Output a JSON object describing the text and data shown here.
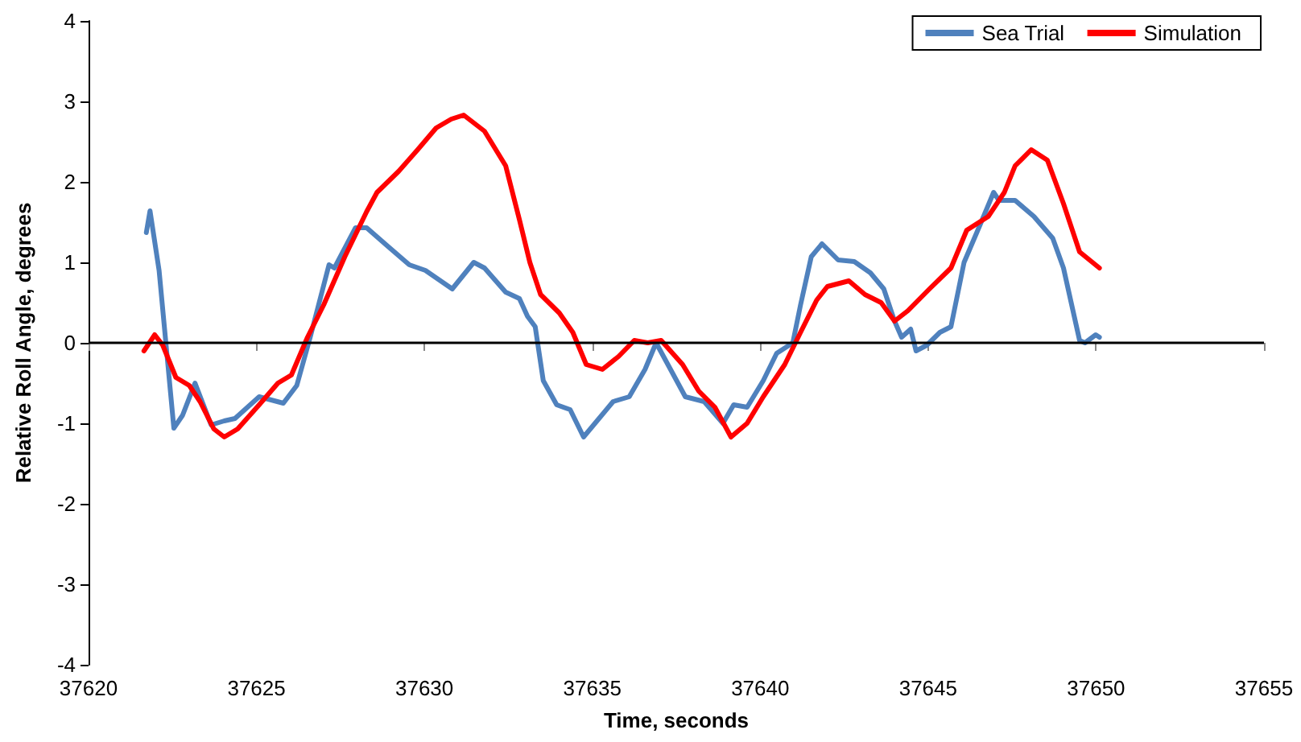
{
  "chart_data": {
    "type": "line",
    "xlabel": "Time, seconds",
    "ylabel": "Relative Roll Angle, degrees",
    "xlim": [
      37620,
      37655
    ],
    "xticks": [
      37620,
      37625,
      37630,
      37635,
      37640,
      37645,
      37650,
      37655
    ],
    "ylim": [
      -4,
      4
    ],
    "yticks": [
      -4,
      -3,
      -2,
      -1,
      0,
      1,
      2,
      3,
      4
    ],
    "grid": false,
    "ref_lines": [
      {
        "axis": "y",
        "value": 0,
        "color": "#000000",
        "line_style": "solid"
      }
    ],
    "legend": "top right",
    "marker": "none",
    "line_style": "solid",
    "series": [
      {
        "name": "Sea Trial",
        "color": "#4f81bd",
        "x": [
          37621.72,
          37621.83,
          37622.1,
          37622.54,
          37622.8,
          37623.17,
          37623.65,
          37624.04,
          37624.36,
          37625.08,
          37625.8,
          37626.2,
          37626.6,
          37627.16,
          37627.32,
          37627.95,
          37628.28,
          37628.91,
          37629.55,
          37630.03,
          37630.83,
          37631.47,
          37631.79,
          37632.42,
          37632.83,
          37633.07,
          37633.3,
          37633.54,
          37633.94,
          37634.34,
          37634.74,
          37635.14,
          37635.62,
          37636.1,
          37636.57,
          37636.9,
          37637.29,
          37637.77,
          37638.33,
          37638.89,
          37639.21,
          37639.61,
          37640.09,
          37640.49,
          37640.97,
          37641.2,
          37641.52,
          37641.84,
          37642.32,
          37642.8,
          37643.28,
          37643.68,
          37644.0,
          37644.21,
          37644.48,
          37644.64,
          37644.96,
          37645.35,
          37645.68,
          37646.07,
          37646.55,
          37646.95,
          37647.11,
          37647.59,
          37648.15,
          37648.71,
          37649.03,
          37649.51,
          37649.67,
          37649.99,
          37650.1
        ],
        "values": [
          1.37,
          1.64,
          0.9,
          -1.06,
          -0.9,
          -0.5,
          -1.02,
          -0.97,
          -0.94,
          -0.67,
          -0.75,
          -0.53,
          0.07,
          0.97,
          0.93,
          1.43,
          1.43,
          1.2,
          0.97,
          0.9,
          0.67,
          1.0,
          0.93,
          0.63,
          0.55,
          0.33,
          0.2,
          -0.47,
          -0.77,
          -0.83,
          -1.17,
          -0.97,
          -0.73,
          -0.67,
          -0.33,
          0.0,
          -0.3,
          -0.67,
          -0.73,
          -1.0,
          -0.77,
          -0.8,
          -0.47,
          -0.13,
          0.0,
          0.47,
          1.07,
          1.23,
          1.03,
          1.01,
          0.87,
          0.67,
          0.27,
          0.07,
          0.17,
          -0.1,
          -0.03,
          0.13,
          0.2,
          1.0,
          1.47,
          1.87,
          1.77,
          1.77,
          1.57,
          1.3,
          0.93,
          0.03,
          0.0,
          0.1,
          0.07
        ]
      },
      {
        "name": "Simulation",
        "color": "#ff0000",
        "x": [
          37621.65,
          37621.97,
          37622.21,
          37622.6,
          37623.0,
          37623.32,
          37623.73,
          37624.04,
          37624.44,
          37625.08,
          37625.64,
          37626.04,
          37626.52,
          37627.0,
          37627.63,
          37628.28,
          37628.59,
          37629.23,
          37629.8,
          37630.35,
          37630.8,
          37631.17,
          37631.79,
          37632.42,
          37632.83,
          37633.14,
          37633.46,
          37634.02,
          37634.42,
          37634.82,
          37635.3,
          37635.78,
          37636.25,
          37636.65,
          37637.05,
          37637.69,
          37638.17,
          37638.65,
          37639.13,
          37639.61,
          37640.09,
          37640.73,
          37641.2,
          37641.68,
          37642.0,
          37642.64,
          37643.12,
          37643.6,
          37644.0,
          37644.4,
          37645.04,
          37645.68,
          37646.15,
          37646.79,
          37647.27,
          37647.59,
          37648.07,
          37648.55,
          37649.03,
          37649.51,
          37650.1
        ],
        "values": [
          -0.1,
          0.1,
          -0.03,
          -0.43,
          -0.53,
          -0.73,
          -1.07,
          -1.17,
          -1.07,
          -0.77,
          -0.5,
          -0.4,
          0.07,
          0.47,
          1.07,
          1.63,
          1.87,
          2.13,
          2.4,
          2.67,
          2.78,
          2.83,
          2.63,
          2.2,
          1.53,
          1.0,
          0.6,
          0.37,
          0.13,
          -0.27,
          -0.33,
          -0.17,
          0.03,
          0.0,
          0.03,
          -0.27,
          -0.6,
          -0.8,
          -1.17,
          -1.0,
          -0.67,
          -0.27,
          0.13,
          0.53,
          0.7,
          0.77,
          0.6,
          0.5,
          0.27,
          0.4,
          0.67,
          0.93,
          1.4,
          1.57,
          1.87,
          2.2,
          2.4,
          2.27,
          1.73,
          1.13,
          0.93
        ]
      }
    ]
  }
}
